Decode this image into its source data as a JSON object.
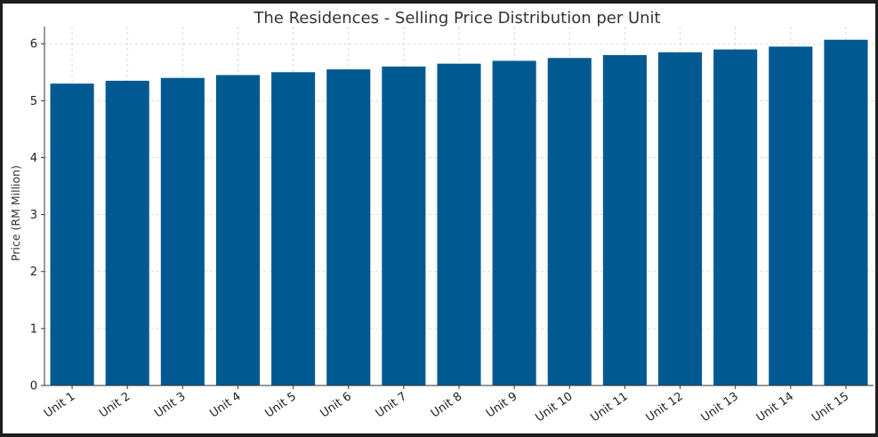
{
  "chart_data": {
    "type": "bar",
    "title": "The Residences - Selling Price Distribution per Unit",
    "xlabel": "",
    "ylabel": "Price (RM Million)",
    "categories": [
      "Unit 1",
      "Unit 2",
      "Unit 3",
      "Unit 4",
      "Unit 5",
      "Unit 6",
      "Unit 7",
      "Unit 8",
      "Unit 9",
      "Unit 10",
      "Unit 11",
      "Unit 12",
      "Unit 13",
      "Unit 14",
      "Unit 15"
    ],
    "values": [
      5.3,
      5.35,
      5.4,
      5.45,
      5.5,
      5.55,
      5.6,
      5.65,
      5.7,
      5.75,
      5.8,
      5.85,
      5.9,
      5.95,
      6.07
    ],
    "ylim": [
      0,
      6.3
    ],
    "yticks": [
      0,
      1,
      2,
      3,
      4,
      5,
      6
    ],
    "grid": true,
    "colors": {
      "bar": "#005a91",
      "background": "#ffffff",
      "frame": "#1e1e1e"
    }
  }
}
